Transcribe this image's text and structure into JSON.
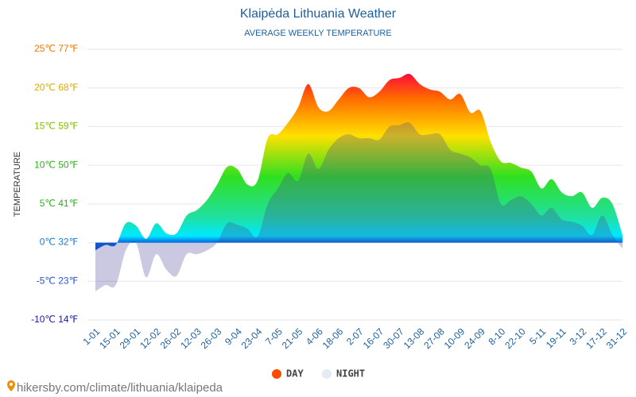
{
  "chart_data": {
    "type": "area",
    "title": "Klaipėda Lithuania Weather",
    "subtitle": "AVERAGE WEEKLY TEMPERATURE",
    "y_label": "TEMPERATURE",
    "source": "hikersby.com/climate/lithuania/klaipeda",
    "categories": [
      "1-01",
      null,
      "15-01",
      null,
      "29-01",
      null,
      "12-02",
      null,
      "26-02",
      null,
      "12-03",
      null,
      "26-03",
      null,
      "9-04",
      null,
      "23-04",
      null,
      "7-05",
      null,
      "21-05",
      null,
      "4-06",
      null,
      "18-06",
      null,
      "2-07",
      null,
      "16-07",
      null,
      "30-07",
      null,
      "13-08",
      null,
      "27-08",
      null,
      "10-09",
      null,
      "24-09",
      null,
      "8-10",
      null,
      "22-10",
      null,
      "5-11",
      null,
      "19-11",
      null,
      "3-12",
      null,
      "17-12",
      null,
      "31-12"
    ],
    "series": [
      {
        "name": "DAY",
        "color": "#ff4a00",
        "values": [
          -1,
          -0.3,
          -0.3,
          2.5,
          2.2,
          0.5,
          2.5,
          1.2,
          1.2,
          3.5,
          4.2,
          5.5,
          7.5,
          9.8,
          9.5,
          7.5,
          8,
          13.5,
          14,
          15.5,
          17.5,
          20.5,
          17.5,
          17,
          18.5,
          20,
          20,
          18.8,
          19.5,
          21,
          21.3,
          21.8,
          20.5,
          19.8,
          19.5,
          18.5,
          19.2,
          16.8,
          17,
          13,
          10.5,
          10.3,
          9.7,
          9.2,
          7,
          8.2,
          6.5,
          6,
          6.5,
          4.5,
          5.8,
          5,
          1
        ]
      },
      {
        "name": "NIGHT",
        "color": "#e4ebf2",
        "values": [
          -6.3,
          -5.5,
          -5.5,
          -1,
          0,
          -4.5,
          -1.5,
          -3.5,
          -4.3,
          -1.5,
          -1.5,
          -1,
          0,
          2.5,
          2.3,
          1.8,
          0.8,
          5,
          7,
          9,
          8,
          11.5,
          9.5,
          12,
          13.5,
          14,
          13.5,
          13.5,
          13.3,
          15,
          15.2,
          15.5,
          14,
          14,
          14,
          12,
          11.5,
          11,
          10,
          9.5,
          5,
          5.5,
          6,
          5,
          3.5,
          4.5,
          3,
          2.7,
          2.2,
          1,
          3.5,
          1,
          -0.8
        ]
      }
    ],
    "ylim": [
      -10,
      25
    ],
    "yticks": [
      {
        "value": -10,
        "label": "-10℃ 14℉"
      },
      {
        "value": -5,
        "label": "-5℃ 23℉"
      },
      {
        "value": 0,
        "label": "0℃ 32℉"
      },
      {
        "value": 5,
        "label": "5℃ 41℉"
      },
      {
        "value": 10,
        "label": "10℃ 50℉"
      },
      {
        "value": 15,
        "label": "15℃ 59℉"
      },
      {
        "value": 20,
        "label": "20℃ 68℉"
      },
      {
        "value": 25,
        "label": "25℃ 77℉"
      }
    ],
    "ytick_colors": [
      "#1a1aa0",
      "#2a55c8",
      "#1a7acc",
      "#33aa22",
      "#33aa22",
      "#88bb00",
      "#ddaa00",
      "#ee7700"
    ],
    "grid": true
  }
}
